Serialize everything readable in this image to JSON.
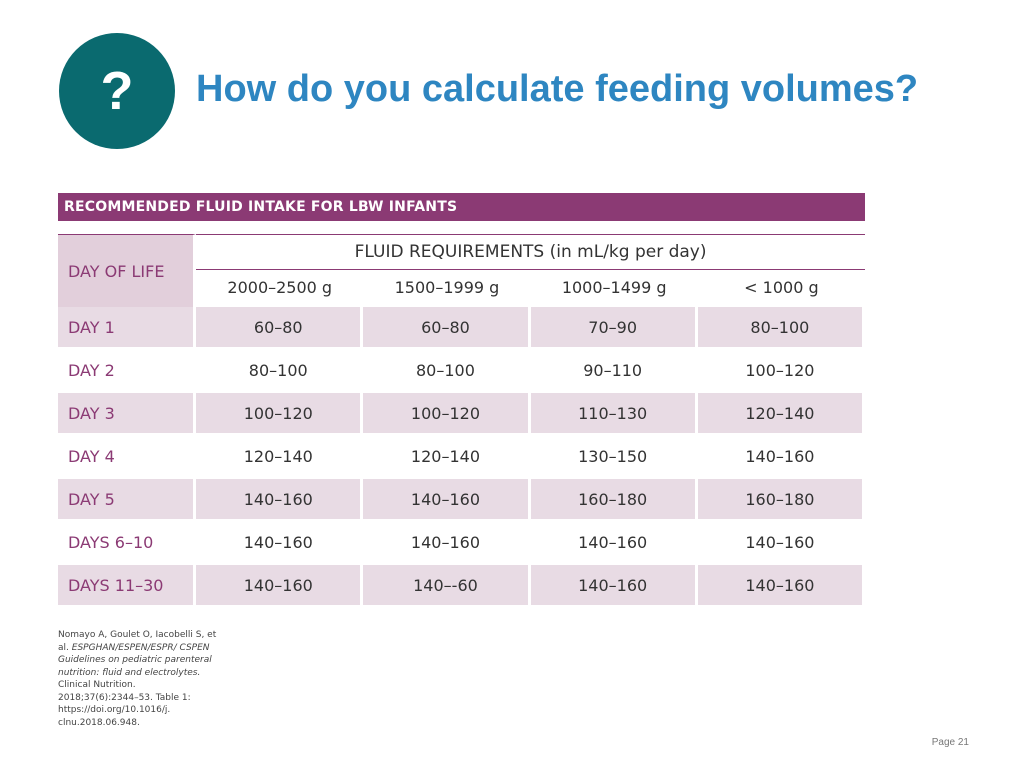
{
  "slide": {
    "icon_glyph": "?",
    "title": "How do you calculate feeding volumes?",
    "page_label": "Page 21"
  },
  "table": {
    "banner": "RECOMMENDED FLUID INTAKE FOR LBW INFANTS",
    "row_header": "DAY OF LIFE",
    "group_header": "FLUID REQUIREMENTS (in mL/kg per day)",
    "weight_columns": [
      "2000–2500 g",
      "1500–1999 g",
      "1000–1499 g",
      "< 1000 g"
    ],
    "rows": [
      {
        "day": "DAY 1",
        "values": [
          "60–80",
          "60–80",
          "70–90",
          "80–100"
        ]
      },
      {
        "day": "DAY 2",
        "values": [
          "80–100",
          "80–100",
          "90–110",
          "100–120"
        ]
      },
      {
        "day": "DAY 3",
        "values": [
          "100–120",
          "100–120",
          "110–130",
          "120–140"
        ]
      },
      {
        "day": "DAY 4",
        "values": [
          "120–140",
          "120–140",
          "130–150",
          "140–160"
        ]
      },
      {
        "day": "DAY 5",
        "values": [
          "140–160",
          "140–160",
          "160–180",
          "160–180"
        ]
      },
      {
        "day": "DAYS 6–10",
        "values": [
          "140–160",
          "140–160",
          "140–160",
          "140–160"
        ]
      },
      {
        "day": "DAYS 11–30",
        "values": [
          "140–160",
          "140–-60",
          "140–160",
          "140–160"
        ]
      }
    ]
  },
  "citation": {
    "authors": "Nomayo A, Goulet O, Iacobelli S, et al.",
    "title_italic": "ESPGHAN/ESPEN/ESPR/ CSPEN Guidelines on pediatric parenteral nutrition: fluid and electrolytes.",
    "rest": "Clinical Nutrition. 2018;37(6):2344–53. Table 1: https://doi.org/10.1016/j. clnu.2018.06.948."
  },
  "colors": {
    "icon_circle": "#0a6a6f",
    "title": "#2e86c1",
    "table_accent": "#8b3a74",
    "row_shade": "#e8dbe4"
  }
}
